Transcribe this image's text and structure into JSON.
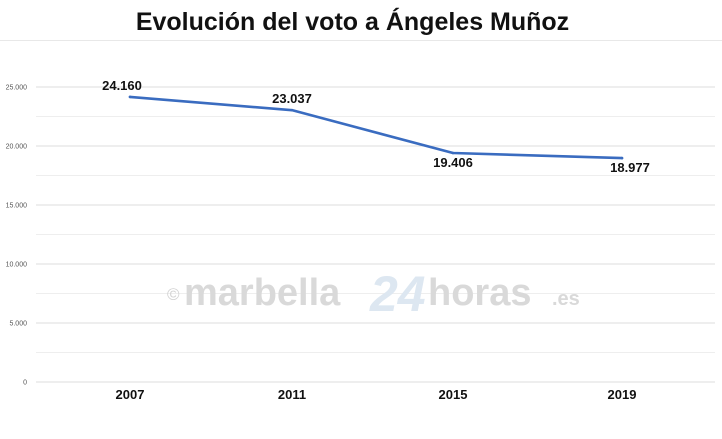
{
  "chart_data": {
    "type": "line",
    "title": "Evolución del voto a Ángeles Muñoz",
    "categories": [
      "2007",
      "2011",
      "2015",
      "2019"
    ],
    "values": [
      24160,
      23037,
      19406,
      18977
    ],
    "data_labels": [
      "24.160",
      "23.037",
      "19.406",
      "18.977"
    ],
    "y_ticks": [
      0,
      5000,
      10000,
      15000,
      20000,
      25000
    ],
    "y_tick_labels": [
      "0",
      "5.000",
      "10.000",
      "15.000",
      "20.000",
      "25.000"
    ],
    "ylim": [
      0,
      25000
    ],
    "grid": true,
    "line_color": "#3a6cc0"
  },
  "watermark": {
    "symbol": "©",
    "main": "marbella",
    "number": "24",
    "suffix": "horas",
    "tld": ".es"
  }
}
